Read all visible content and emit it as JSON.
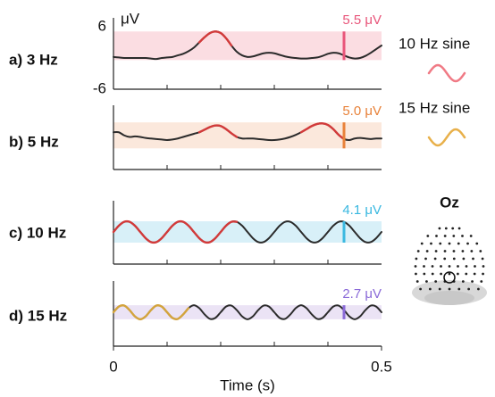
{
  "chart_data": [
    {
      "type": "line",
      "title": "a) 3 Hz",
      "ylabel": "μV",
      "ylim": [
        -6,
        6
      ],
      "yticks": [
        6,
        -6
      ],
      "xlim": [
        0,
        0.5
      ],
      "xminor": [
        0.1,
        0.2,
        0.3,
        0.4
      ],
      "x": [
        0,
        0.01,
        0.02,
        0.03,
        0.04,
        0.05,
        0.06,
        0.07,
        0.08,
        0.09,
        0.1,
        0.11,
        0.12,
        0.13,
        0.14,
        0.15,
        0.16,
        0.17,
        0.18,
        0.19,
        0.2,
        0.21,
        0.22,
        0.23,
        0.24,
        0.25,
        0.26,
        0.27,
        0.28,
        0.29,
        0.3,
        0.31,
        0.32,
        0.33,
        0.34,
        0.35,
        0.36,
        0.37,
        0.38,
        0.39,
        0.4,
        0.41,
        0.42,
        0.43,
        0.44,
        0.45,
        0.46,
        0.47,
        0.48,
        0.49,
        0.5
      ],
      "series": [
        {
          "color": "#2b2b2b",
          "values": [
            0.2,
            0.1,
            0,
            0,
            0,
            0,
            0,
            -0.1,
            -0.2,
            0,
            0.1,
            0.2,
            0.5,
            0.8,
            1.3,
            2.0,
            3.0,
            4.0,
            4.8,
            5.1,
            4.8,
            3.8,
            2.4,
            1.2,
            0.5,
            0.2,
            0.3,
            0.6,
            0.9,
            1.0,
            0.9,
            0.6,
            0.3,
            0.1,
            0,
            -0.1,
            -0.1,
            0,
            0.1,
            0.4,
            0.8,
            1.0,
            0.9,
            0.5,
            0.1,
            -0.1,
            0,
            0.4,
            1.0,
            1.7,
            2.4
          ]
        },
        {
          "color": "#d23a3a",
          "values": [
            null,
            null,
            null,
            null,
            null,
            null,
            null,
            null,
            null,
            null,
            null,
            null,
            null,
            null,
            null,
            null,
            3.0,
            4.0,
            4.8,
            5.1,
            4.8,
            3.8,
            2.4,
            null,
            null,
            null,
            null,
            null,
            null,
            null,
            null,
            null,
            null,
            null,
            null,
            null,
            null,
            null,
            null,
            null,
            null,
            null,
            null,
            null,
            null,
            null,
            null,
            null,
            null,
            null,
            null
          ]
        }
      ],
      "band": [
        -0.4,
        5.1
      ],
      "band_color": "#fbdde2",
      "amplitude": 5.5,
      "value_labels": [
        "5.5 μV"
      ],
      "amplitude_x": 0.43,
      "amplitude_color": "#e8557a"
    },
    {
      "type": "line",
      "title": "b) 5 Hz",
      "ylim": [
        -6,
        6
      ],
      "xlim": [
        0,
        0.5
      ],
      "xminor": [
        0.1,
        0.2,
        0.3,
        0.4
      ],
      "x": [
        0,
        0.01,
        0.02,
        0.03,
        0.04,
        0.05,
        0.06,
        0.07,
        0.08,
        0.09,
        0.1,
        0.11,
        0.12,
        0.13,
        0.14,
        0.15,
        0.16,
        0.17,
        0.18,
        0.19,
        0.2,
        0.21,
        0.22,
        0.23,
        0.24,
        0.25,
        0.26,
        0.27,
        0.28,
        0.29,
        0.3,
        0.31,
        0.32,
        0.33,
        0.34,
        0.35,
        0.36,
        0.37,
        0.38,
        0.39,
        0.4,
        0.41,
        0.42,
        0.43,
        0.44,
        0.45,
        0.46,
        0.47,
        0.48,
        0.49,
        0.5
      ],
      "series": [
        {
          "color": "#2b2b2b",
          "values": [
            0.3,
            0.3,
            -0.3,
            -0.6,
            -0.5,
            -0.6,
            -0.8,
            -0.9,
            -1.0,
            -1.1,
            -1.2,
            -1.1,
            -0.9,
            -0.6,
            -0.3,
            0,
            0.3,
            0.8,
            1.3,
            1.6,
            1.5,
            0.9,
            0.1,
            -0.6,
            -0.9,
            -0.9,
            -0.9,
            -1.0,
            -1.1,
            -1.2,
            -1.2,
            -1.1,
            -0.9,
            -0.6,
            -0.2,
            0.3,
            0.9,
            1.5,
            1.9,
            2.0,
            1.7,
            0.9,
            -0.2,
            -1.0,
            -1.2,
            -0.9,
            -0.8,
            -0.9,
            -1.0,
            -0.9,
            -0.9
          ]
        },
        {
          "color": "#d23a3a",
          "values": [
            null,
            null,
            null,
            null,
            null,
            null,
            null,
            null,
            null,
            null,
            null,
            null,
            null,
            null,
            null,
            null,
            0.3,
            0.8,
            1.3,
            1.6,
            1.5,
            0.9,
            0.1,
            -0.6,
            null,
            null,
            null,
            null,
            null,
            null,
            null,
            null,
            null,
            null,
            null,
            0.3,
            0.9,
            1.5,
            1.9,
            2.0,
            1.7,
            0.9,
            -0.2,
            -1.0,
            null,
            null,
            null,
            null,
            null,
            null,
            null
          ]
        }
      ],
      "band": [
        -2.8,
        2.2
      ],
      "band_color": "#fbe8dc",
      "amplitude": 5.0,
      "value_labels": [
        "5.0 μV"
      ],
      "amplitude_x": 0.43,
      "amplitude_color": "#e8823a"
    },
    {
      "type": "line",
      "title": "c) 10 Hz",
      "ylim": [
        -6,
        6
      ],
      "xlim": [
        0,
        0.5
      ],
      "xminor": [
        0.1,
        0.2,
        0.3,
        0.4
      ],
      "x": [
        0,
        0.01,
        0.02,
        0.03,
        0.04,
        0.05,
        0.06,
        0.07,
        0.08,
        0.09,
        0.1,
        0.11,
        0.12,
        0.13,
        0.14,
        0.15,
        0.16,
        0.17,
        0.18,
        0.19,
        0.2,
        0.21,
        0.22,
        0.23,
        0.24,
        0.25,
        0.26,
        0.27,
        0.28,
        0.29,
        0.3,
        0.31,
        0.32,
        0.33,
        0.34,
        0.35,
        0.36,
        0.37,
        0.38,
        0.39,
        0.4,
        0.41,
        0.42,
        0.43,
        0.44,
        0.45,
        0.46,
        0.47,
        0.48,
        0.49,
        0.5
      ],
      "series": [
        {
          "color": "#2b2b2b",
          "values": [
            0,
            1.2,
            1.95,
            1.95,
            1.2,
            0,
            -1.2,
            -1.95,
            -1.95,
            -1.2,
            0,
            1.2,
            1.95,
            1.95,
            1.2,
            0,
            -1.2,
            -1.95,
            -1.95,
            -1.2,
            0,
            1.2,
            1.95,
            1.95,
            1.2,
            0,
            -1.2,
            -1.95,
            -1.95,
            -1.2,
            0,
            1.2,
            1.95,
            1.95,
            1.2,
            0,
            -1.2,
            -1.95,
            -1.95,
            -1.2,
            0,
            1.2,
            1.95,
            1.95,
            1.2,
            0,
            -1.2,
            -1.95,
            -1.95,
            -1.2,
            0
          ]
        },
        {
          "color": "#d23a3a",
          "values": [
            0,
            1.2,
            1.95,
            1.95,
            1.2,
            0,
            -1.2,
            -1.95,
            -1.95,
            -1.2,
            0,
            1.2,
            1.95,
            1.95,
            1.2,
            0,
            -1.2,
            -1.95,
            -1.95,
            -1.2,
            0,
            1.2,
            1.95,
            1.95,
            null,
            null,
            null,
            null,
            null,
            null,
            null,
            null,
            null,
            null,
            null,
            null,
            null,
            null,
            null,
            null,
            null,
            null,
            null,
            null,
            null,
            null,
            null,
            null,
            null,
            null,
            null
          ]
        }
      ],
      "band": [
        -2.05,
        2.05
      ],
      "band_color": "#d8f0f8",
      "amplitude": 4.1,
      "value_labels": [
        "4.1 μV"
      ],
      "amplitude_x": 0.43,
      "amplitude_color": "#3ab8e0"
    },
    {
      "type": "line",
      "title": "d) 15 Hz",
      "ylim": [
        -6,
        6
      ],
      "xlim": [
        0,
        0.5
      ],
      "xticks": [
        0,
        0.5
      ],
      "xminor": [
        0.1,
        0.2,
        0.3,
        0.4
      ],
      "xlabel": "Time (s)",
      "x": [
        0,
        0.01,
        0.02,
        0.03,
        0.04,
        0.05,
        0.06,
        0.07,
        0.08,
        0.09,
        0.1,
        0.11,
        0.12,
        0.13,
        0.14,
        0.15,
        0.16,
        0.17,
        0.18,
        0.19,
        0.2,
        0.21,
        0.22,
        0.23,
        0.24,
        0.25,
        0.26,
        0.27,
        0.28,
        0.29,
        0.3,
        0.31,
        0.32,
        0.33,
        0.34,
        0.35,
        0.36,
        0.37,
        0.38,
        0.39,
        0.4,
        0.41,
        0.42,
        0.43,
        0.44,
        0.45,
        0.46,
        0.47,
        0.48,
        0.49,
        0.5
      ],
      "series": [
        {
          "color": "#2b2b2b",
          "values": [
            0,
            1.09,
            1.28,
            0.42,
            -0.79,
            -1.35,
            -0.79,
            0.42,
            1.28,
            1.09,
            0,
            -1.09,
            -1.28,
            -0.42,
            0.79,
            1.35,
            0.79,
            -0.42,
            -1.28,
            -1.09,
            0,
            1.09,
            1.28,
            0.42,
            -0.79,
            -1.35,
            -0.79,
            0.42,
            1.28,
            1.09,
            0,
            -1.09,
            -1.28,
            -0.42,
            0.79,
            1.35,
            0.79,
            -0.42,
            -1.28,
            -1.09,
            0,
            1.09,
            1.28,
            0.42,
            -0.79,
            -1.35,
            -0.79,
            0.42,
            1.28,
            1.09,
            0
          ]
        },
        {
          "color": "#d4a43c",
          "values": [
            0,
            1.09,
            1.28,
            0.42,
            -0.79,
            -1.35,
            -0.79,
            0.42,
            1.28,
            1.09,
            0,
            -1.09,
            -1.28,
            -0.42,
            0.79,
            null,
            null,
            null,
            null,
            null,
            null,
            null,
            null,
            null,
            null,
            null,
            null,
            null,
            null,
            null,
            null,
            null,
            null,
            null,
            null,
            null,
            null,
            null,
            null,
            null,
            null,
            null,
            null,
            null,
            null,
            null,
            null,
            null,
            null,
            null,
            null
          ]
        }
      ],
      "band": [
        -1.35,
        1.35
      ],
      "band_color": "#ebe3f5",
      "amplitude": 2.7,
      "value_labels": [
        "2.7 μV"
      ],
      "amplitude_x": 0.43,
      "amplitude_color": "#8a6ad8"
    }
  ],
  "legend": [
    {
      "name": "10 Hz sine",
      "color": "#f07a85"
    },
    {
      "name": "15 Hz sine",
      "color": "#e8b04a"
    }
  ],
  "electrode": "Oz"
}
